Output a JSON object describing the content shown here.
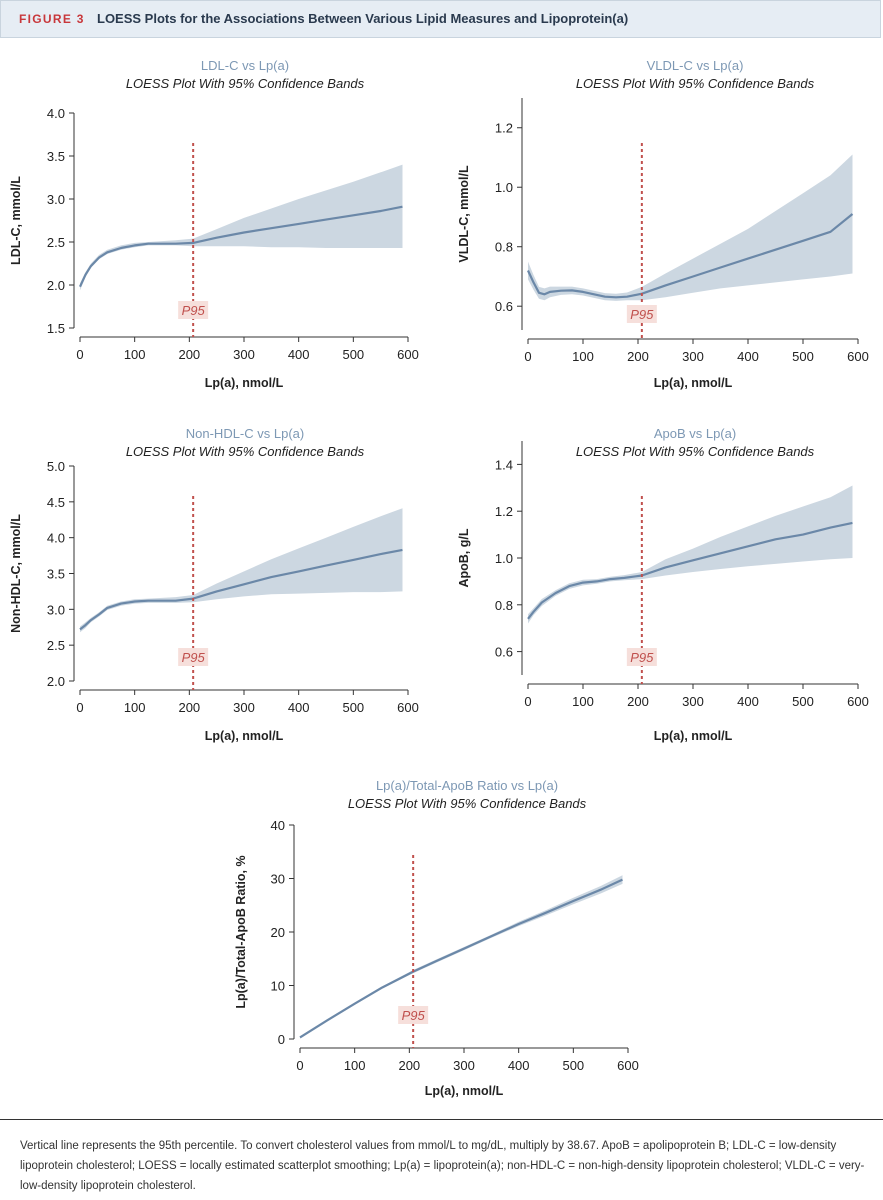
{
  "figure": {
    "label": "FIGURE 3",
    "title": "LOESS Plots for the Associations Between Various Lipid Measures and Lipoprotein(a)"
  },
  "caption": "Vertical line represents the 95th percentile. To convert cholesterol values from mmol/L to mg/dL, multiply by 38.67. ApoB = apolipoprotein B; LDL-C = low-density lipoprotein cholesterol; LOESS = locally estimated scatterplot smoothing; Lp(a) = lipoprotein(a); non-HDL-C = non-high-density lipoprotein cholesterol; VLDL-C = very-low-density lipoprotein cholesterol.",
  "colors": {
    "line": "#6b88a8",
    "band": "#ccd7e1",
    "title_blue": "#7d98b4",
    "p95_line": "#c0504d",
    "p95_bg": "#f6dfdb",
    "p95_text": "#c0504d",
    "axis": "#333333"
  },
  "chart_data": [
    {
      "id": "ldl",
      "type": "line",
      "title": "LDL-C vs Lp(a)",
      "subtitle": "LOESS Plot With 95% Confidence Bands",
      "xlabel": "Lp(a), nmol/L",
      "ylabel": "LDL-C, mmol/L",
      "xlim": [
        0,
        600
      ],
      "ylim": [
        1.5,
        4.0
      ],
      "xticks": [
        "0",
        "100",
        "200",
        "300",
        "400",
        "500",
        "600"
      ],
      "yticks": [
        "1.5",
        "2.0",
        "2.5",
        "3.0",
        "3.5",
        "4.0"
      ],
      "vline": {
        "x": 207,
        "label": "P95"
      },
      "x": [
        0,
        10,
        20,
        35,
        50,
        75,
        100,
        125,
        150,
        175,
        207,
        250,
        300,
        350,
        400,
        450,
        500,
        550,
        590
      ],
      "y": [
        1.98,
        2.12,
        2.22,
        2.32,
        2.38,
        2.43,
        2.46,
        2.48,
        2.48,
        2.48,
        2.49,
        2.55,
        2.61,
        2.66,
        2.71,
        2.76,
        2.81,
        2.86,
        2.91
      ],
      "lower": [
        1.94,
        2.09,
        2.2,
        2.3,
        2.36,
        2.41,
        2.44,
        2.46,
        2.46,
        2.46,
        2.45,
        2.45,
        2.45,
        2.44,
        2.44,
        2.43,
        2.43,
        2.43,
        2.43
      ],
      "upper": [
        2.02,
        2.15,
        2.25,
        2.35,
        2.41,
        2.46,
        2.49,
        2.5,
        2.51,
        2.52,
        2.54,
        2.65,
        2.78,
        2.89,
        3.0,
        3.1,
        3.2,
        3.31,
        3.4
      ]
    },
    {
      "id": "vldl",
      "type": "line",
      "title": "VLDL-C vs Lp(a)",
      "subtitle": "LOESS Plot With 95% Confidence Bands",
      "xlabel": "Lp(a), nmol/L",
      "ylabel": "VLDL-C, mmol/L",
      "xlim": [
        0,
        600
      ],
      "ylim": [
        0.52,
        1.3
      ],
      "xticks": [
        "0",
        "100",
        "200",
        "300",
        "400",
        "500",
        "600"
      ],
      "yticks": [
        "0.6",
        "0.8",
        "1.0",
        "1.2"
      ],
      "vline": {
        "x": 207,
        "label": "P95"
      },
      "x": [
        0,
        10,
        20,
        30,
        40,
        60,
        80,
        100,
        120,
        140,
        160,
        180,
        207,
        250,
        300,
        350,
        400,
        450,
        500,
        550,
        590
      ],
      "y": [
        0.72,
        0.68,
        0.645,
        0.64,
        0.648,
        0.652,
        0.653,
        0.648,
        0.64,
        0.632,
        0.63,
        0.632,
        0.642,
        0.67,
        0.7,
        0.73,
        0.76,
        0.79,
        0.82,
        0.85,
        0.91
      ],
      "lower": [
        0.69,
        0.655,
        0.625,
        0.62,
        0.63,
        0.638,
        0.64,
        0.636,
        0.628,
        0.62,
        0.618,
        0.62,
        0.62,
        0.63,
        0.645,
        0.66,
        0.67,
        0.68,
        0.69,
        0.7,
        0.71
      ],
      "upper": [
        0.75,
        0.705,
        0.665,
        0.66,
        0.666,
        0.666,
        0.666,
        0.66,
        0.652,
        0.644,
        0.642,
        0.646,
        0.665,
        0.71,
        0.76,
        0.81,
        0.86,
        0.92,
        0.98,
        1.04,
        1.11
      ]
    },
    {
      "id": "nonhdl",
      "type": "line",
      "title": "Non-HDL-C vs Lp(a)",
      "subtitle": "LOESS Plot With 95% Confidence Bands",
      "xlabel": "Lp(a), nmol/L",
      "ylabel": "Non-HDL-C, mmol/L",
      "xlim": [
        0,
        600
      ],
      "ylim": [
        2.0,
        5.0
      ],
      "xticks": [
        "0",
        "100",
        "200",
        "300",
        "400",
        "500",
        "600"
      ],
      "yticks": [
        "2.0",
        "2.5",
        "3.0",
        "3.5",
        "4.0",
        "4.5",
        "5.0"
      ],
      "vline": {
        "x": 207,
        "label": "P95"
      },
      "x": [
        0,
        10,
        20,
        35,
        50,
        75,
        100,
        125,
        150,
        175,
        207,
        250,
        300,
        350,
        400,
        450,
        500,
        550,
        590
      ],
      "y": [
        2.72,
        2.78,
        2.85,
        2.93,
        3.02,
        3.08,
        3.11,
        3.12,
        3.12,
        3.12,
        3.15,
        3.25,
        3.35,
        3.45,
        3.53,
        3.61,
        3.69,
        3.77,
        3.83
      ],
      "lower": [
        2.68,
        2.74,
        2.82,
        2.9,
        2.99,
        3.05,
        3.08,
        3.09,
        3.09,
        3.09,
        3.1,
        3.14,
        3.18,
        3.21,
        3.22,
        3.23,
        3.24,
        3.24,
        3.25
      ],
      "upper": [
        2.76,
        2.82,
        2.88,
        2.96,
        3.05,
        3.11,
        3.14,
        3.15,
        3.16,
        3.17,
        3.2,
        3.36,
        3.53,
        3.7,
        3.85,
        4.0,
        4.15,
        4.3,
        4.41
      ]
    },
    {
      "id": "apob",
      "type": "line",
      "title": "ApoB vs Lp(a)",
      "subtitle": "LOESS Plot With 95% Confidence Bands",
      "xlabel": "Lp(a), nmol/L",
      "ylabel": "ApoB, g/L",
      "xlim": [
        0,
        600
      ],
      "ylim": [
        0.5,
        1.5
      ],
      "xticks": [
        "0",
        "100",
        "200",
        "300",
        "400",
        "500",
        "600"
      ],
      "yticks": [
        "0.6",
        "0.8",
        "1.0",
        "1.2",
        "1.4"
      ],
      "vline": {
        "x": 207,
        "label": "P95"
      },
      "x": [
        0,
        10,
        25,
        50,
        75,
        100,
        125,
        150,
        175,
        207,
        250,
        300,
        350,
        400,
        450,
        500,
        550,
        590
      ],
      "y": [
        0.74,
        0.77,
        0.81,
        0.85,
        0.88,
        0.895,
        0.9,
        0.91,
        0.915,
        0.925,
        0.96,
        0.99,
        1.02,
        1.05,
        1.08,
        1.1,
        1.13,
        1.15
      ],
      "lower": [
        0.72,
        0.755,
        0.795,
        0.838,
        0.868,
        0.883,
        0.89,
        0.9,
        0.905,
        0.91,
        0.925,
        0.94,
        0.953,
        0.965,
        0.975,
        0.985,
        0.995,
        1.0
      ],
      "upper": [
        0.76,
        0.785,
        0.825,
        0.862,
        0.892,
        0.907,
        0.91,
        0.92,
        0.927,
        0.94,
        0.995,
        1.04,
        1.09,
        1.135,
        1.18,
        1.22,
        1.26,
        1.31
      ]
    },
    {
      "id": "ratio",
      "type": "line",
      "title": "Lp(a)/Total-ApoB Ratio vs Lp(a)",
      "subtitle": "LOESS Plot With 95% Confidence Bands",
      "xlabel": "Lp(a), nmol/L",
      "ylabel": "Lp(a)/Total-ApoB Ratio, %",
      "xlim": [
        0,
        600
      ],
      "ylim": [
        0,
        40
      ],
      "xticks": [
        "0",
        "100",
        "200",
        "300",
        "400",
        "500",
        "600"
      ],
      "yticks": [
        "0",
        "10",
        "20",
        "30",
        "40"
      ],
      "vline": {
        "x": 207,
        "label": "P95"
      },
      "x": [
        0,
        50,
        100,
        150,
        207,
        250,
        300,
        350,
        400,
        450,
        500,
        550,
        590
      ],
      "y": [
        0.3,
        3.5,
        6.6,
        9.6,
        12.6,
        14.6,
        16.9,
        19.2,
        21.5,
        23.6,
        25.8,
        27.9,
        29.8
      ],
      "lower": [
        0.1,
        3.3,
        6.4,
        9.4,
        12.3,
        14.3,
        16.6,
        18.9,
        21.1,
        23.1,
        25.2,
        27.2,
        29.0
      ],
      "upper": [
        0.5,
        3.7,
        6.8,
        9.8,
        12.9,
        14.9,
        17.2,
        19.5,
        21.9,
        24.1,
        26.4,
        28.6,
        30.6
      ]
    }
  ]
}
